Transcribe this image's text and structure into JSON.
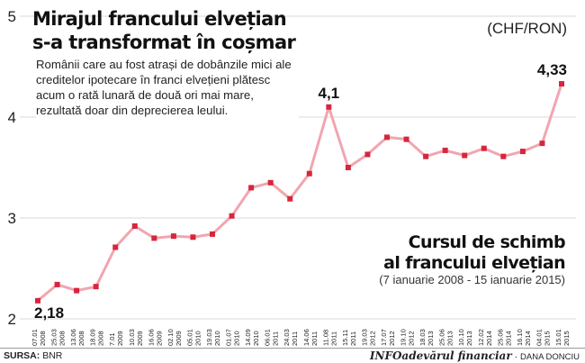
{
  "header": {
    "title_line1": "Mirajul francului elvețian",
    "title_line2": "s-a transformat în coșmar",
    "currency": "(CHF/RON)",
    "subtitle": "Românii care au fost atrași de dobânzile mici ale creditelor ipotecare în franci elvețieni plătesc acum o rată lunară de două ori mai mare, rezultată doar din deprecierea leului."
  },
  "series_title": {
    "line1": "Cursul de schimb",
    "line2": "al francului elvețian",
    "period": "(7 ianuarie 2008 - 15 ianuarie 2015)"
  },
  "footer": {
    "source_label": "SURSA:",
    "source_value": "BNR",
    "brand": "INFOadevărul financiar",
    "author": "DANA DONCIU"
  },
  "colors": {
    "line": "#f2a5b0",
    "marker": "#d6263d",
    "grid": "#d9d9d9",
    "text": "#222222"
  },
  "chart_data": {
    "type": "line",
    "title": "Cursul de schimb al francului elvețian",
    "ylim": [
      2,
      5
    ],
    "yticks": [
      2,
      3,
      4,
      5
    ],
    "grid": true,
    "categories": [
      [
        "07.01",
        "2008"
      ],
      [
        "25.03",
        "2008"
      ],
      [
        "13.06",
        "2008"
      ],
      [
        "18.09",
        "2008"
      ],
      [
        "7.01",
        "2009"
      ],
      [
        "10.03",
        "2009"
      ],
      [
        "16.06",
        "2009"
      ],
      [
        "02.10",
        "2009"
      ],
      [
        "05.01",
        "2010"
      ],
      [
        "19.03",
        "2010"
      ],
      [
        "01.07",
        "2010"
      ],
      [
        "14.09",
        "2010"
      ],
      [
        "06.01",
        "2011"
      ],
      [
        "24.03",
        "2011"
      ],
      [
        "14.06",
        "2011"
      ],
      [
        "11.08",
        "2011"
      ],
      [
        "15.11",
        "2011"
      ],
      [
        "19.03",
        "2012"
      ],
      [
        "17.07",
        "2012"
      ],
      [
        "19.10",
        "2012"
      ],
      [
        "18.03",
        "2013"
      ],
      [
        "25.06",
        "2013"
      ],
      [
        "10.10",
        "2013"
      ],
      [
        "12.02",
        "2014"
      ],
      [
        "25.06",
        "2014"
      ],
      [
        "16.10",
        "2014"
      ],
      [
        "04.01",
        "2015"
      ],
      [
        "15.01",
        "2015"
      ]
    ],
    "values": [
      2.18,
      2.34,
      2.28,
      2.32,
      2.71,
      2.92,
      2.8,
      2.82,
      2.81,
      2.84,
      3.02,
      3.3,
      3.35,
      3.19,
      3.44,
      4.1,
      3.5,
      3.63,
      3.8,
      3.78,
      3.61,
      3.67,
      3.62,
      3.69,
      3.61,
      3.66,
      3.74,
      4.33
    ],
    "data_labels": [
      {
        "index": 0,
        "text": "2,18"
      },
      {
        "index": 15,
        "text": "4,1"
      },
      {
        "index": 27,
        "text": "4,33"
      }
    ]
  }
}
